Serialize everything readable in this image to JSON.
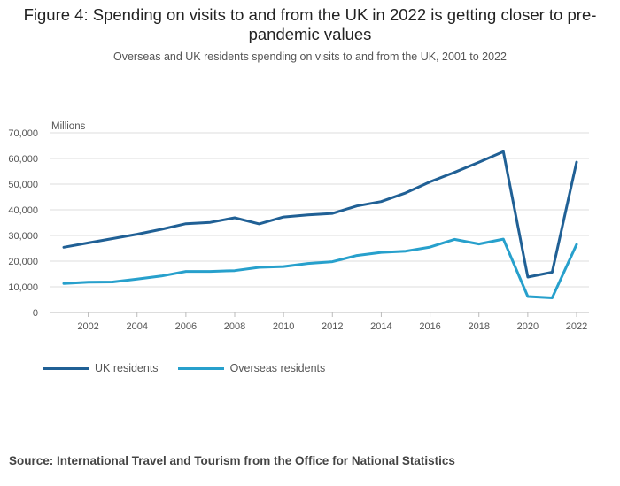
{
  "header": {
    "title": "Figure 4: Spending on visits to and from the UK in 2022 is getting closer to pre-pandemic values",
    "subtitle": "Overseas and UK residents spending on visits to and from the UK, 2001 to 2022"
  },
  "footer": {
    "source": "Source: International Travel and Tourism from the Office for National Statistics"
  },
  "colors": {
    "uk": "#206095",
    "overseas": "#27a0cc",
    "grid": "#dddddd",
    "axis": "#bbbbbb"
  },
  "chart_data": {
    "type": "line",
    "ylabel": "Millions",
    "ylim": [
      0,
      70000
    ],
    "yticks": [
      0,
      10000,
      20000,
      30000,
      40000,
      50000,
      60000,
      70000
    ],
    "ytick_labels": [
      "0",
      "10,000",
      "20,000",
      "30,000",
      "40,000",
      "50,000",
      "60,000",
      "70,000"
    ],
    "xlim": [
      2001,
      2022
    ],
    "xticks": [
      2002,
      2004,
      2006,
      2008,
      2010,
      2012,
      2014,
      2016,
      2018,
      2020,
      2022
    ],
    "x": [
      2001,
      2002,
      2003,
      2004,
      2005,
      2006,
      2007,
      2008,
      2009,
      2010,
      2011,
      2012,
      2013,
      2014,
      2015,
      2016,
      2017,
      2018,
      2019,
      2020,
      2021,
      2022
    ],
    "grid": true,
    "legend_position": "bottom-left",
    "series": [
      {
        "name": "UK residents",
        "color_key": "uk",
        "values": [
          25400,
          27100,
          28800,
          30500,
          32400,
          34600,
          35100,
          36900,
          34500,
          37200,
          38000,
          38600,
          41500,
          43200,
          46600,
          50900,
          54600,
          58500,
          62700,
          13800,
          15700,
          58600
        ]
      },
      {
        "name": "Overseas residents",
        "color_key": "overseas",
        "values": [
          11300,
          11800,
          11900,
          13000,
          14200,
          16000,
          16000,
          16300,
          17600,
          17900,
          19100,
          19800,
          22200,
          23400,
          23900,
          25500,
          28500,
          26700,
          28600,
          6200,
          5700,
          26500
        ]
      }
    ]
  }
}
